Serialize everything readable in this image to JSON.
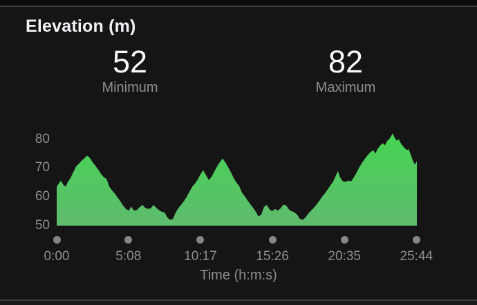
{
  "screen": {
    "background": "#0b0b0b",
    "panel_background": "#151515",
    "divider_color": "#3a3a3a",
    "text_primary": "#f2f2f7",
    "text_secondary": "#8e8e93",
    "tick_dot_color": "#85858a"
  },
  "header": {
    "title": "Elevation (m)"
  },
  "stats": {
    "minimum": {
      "value": "52",
      "label": "Minimum"
    },
    "maximum": {
      "value": "82",
      "label": "Maximum"
    }
  },
  "chart_data": {
    "type": "area",
    "title": "Elevation (m)",
    "xlabel": "Time (h:m:s)",
    "ylabel": "Elevation (m)",
    "legend": "none",
    "grid": false,
    "min": 52,
    "max": 82,
    "ylim": [
      50,
      82.8
    ],
    "duration_s": 1546,
    "y_ticks": [
      80,
      70,
      60,
      50
    ],
    "x_ticks": [
      {
        "t": 0,
        "label": "0:00"
      },
      {
        "t": 308,
        "label": "5:08"
      },
      {
        "t": 617,
        "label": "10:17"
      },
      {
        "t": 926,
        "label": "15:26"
      },
      {
        "t": 1235,
        "label": "20:35"
      },
      {
        "t": 1544,
        "label": "25:44"
      }
    ],
    "gradient_top": "#45d452",
    "gradient_bottom": "#5fbb6e",
    "points": [
      [
        0,
        63.5
      ],
      [
        9,
        64.6
      ],
      [
        18,
        65.6
      ],
      [
        30,
        64.0
      ],
      [
        39,
        63.6
      ],
      [
        47,
        65.0
      ],
      [
        59,
        66.5
      ],
      [
        71,
        68.5
      ],
      [
        83,
        70.5
      ],
      [
        95,
        71.5
      ],
      [
        107,
        72.5
      ],
      [
        119,
        73.4
      ],
      [
        131,
        74.3
      ],
      [
        142,
        73.5
      ],
      [
        154,
        72.0
      ],
      [
        166,
        70.8
      ],
      [
        178,
        69.5
      ],
      [
        190,
        68.0
      ],
      [
        202,
        66.8
      ],
      [
        214,
        66.2
      ],
      [
        226,
        63.5
      ],
      [
        237,
        62.3
      ],
      [
        249,
        61.2
      ],
      [
        261,
        59.8
      ],
      [
        273,
        58.5
      ],
      [
        285,
        57.0
      ],
      [
        297,
        55.8
      ],
      [
        309,
        55.2
      ],
      [
        320,
        56.6
      ],
      [
        332,
        55.2
      ],
      [
        344,
        55.4
      ],
      [
        356,
        56.4
      ],
      [
        368,
        57.2
      ],
      [
        380,
        56.2
      ],
      [
        392,
        55.8
      ],
      [
        404,
        56.0
      ],
      [
        415,
        57.2
      ],
      [
        427,
        56.2
      ],
      [
        439,
        55.4
      ],
      [
        451,
        54.8
      ],
      [
        463,
        54.6
      ],
      [
        475,
        52.8
      ],
      [
        487,
        52.0
      ],
      [
        499,
        52.3
      ],
      [
        510,
        54.5
      ],
      [
        522,
        56.0
      ],
      [
        534,
        57.2
      ],
      [
        546,
        58.5
      ],
      [
        558,
        60.0
      ],
      [
        570,
        61.8
      ],
      [
        582,
        63.5
      ],
      [
        593,
        64.5
      ],
      [
        605,
        66.0
      ],
      [
        617,
        67.8
      ],
      [
        629,
        69.2
      ],
      [
        641,
        67.5
      ],
      [
        653,
        65.8
      ],
      [
        665,
        67.0
      ],
      [
        677,
        68.8
      ],
      [
        688,
        70.5
      ],
      [
        700,
        72.0
      ],
      [
        712,
        73.3
      ],
      [
        724,
        72.0
      ],
      [
        736,
        70.3
      ],
      [
        748,
        68.5
      ],
      [
        760,
        66.5
      ],
      [
        771,
        65.0
      ],
      [
        783,
        63.8
      ],
      [
        795,
        61.5
      ],
      [
        807,
        60.2
      ],
      [
        819,
        58.8
      ],
      [
        831,
        57.5
      ],
      [
        843,
        56.2
      ],
      [
        855,
        54.8
      ],
      [
        866,
        53.2
      ],
      [
        878,
        53.8
      ],
      [
        890,
        56.5
      ],
      [
        902,
        57.2
      ],
      [
        914,
        55.6
      ],
      [
        925,
        55.0
      ],
      [
        937,
        55.8
      ],
      [
        949,
        55.2
      ],
      [
        961,
        56.0
      ],
      [
        973,
        57.3
      ],
      [
        985,
        57.0
      ],
      [
        997,
        55.6
      ],
      [
        1009,
        55.0
      ],
      [
        1021,
        54.6
      ],
      [
        1032,
        53.8
      ],
      [
        1044,
        52.3
      ],
      [
        1056,
        52.0
      ],
      [
        1068,
        52.8
      ],
      [
        1080,
        54.2
      ],
      [
        1092,
        55.2
      ],
      [
        1104,
        56.2
      ],
      [
        1115,
        57.3
      ],
      [
        1127,
        58.6
      ],
      [
        1139,
        60.0
      ],
      [
        1151,
        61.2
      ],
      [
        1163,
        62.5
      ],
      [
        1175,
        64.0
      ],
      [
        1187,
        65.3
      ],
      [
        1199,
        67.5
      ],
      [
        1207,
        69.0
      ],
      [
        1216,
        66.8
      ],
      [
        1228,
        65.4
      ],
      [
        1240,
        65.2
      ],
      [
        1252,
        65.6
      ],
      [
        1264,
        65.4
      ],
      [
        1276,
        66.8
      ],
      [
        1288,
        68.5
      ],
      [
        1299,
        70.3
      ],
      [
        1311,
        71.8
      ],
      [
        1323,
        73.2
      ],
      [
        1335,
        74.5
      ],
      [
        1347,
        75.5
      ],
      [
        1359,
        76.2
      ],
      [
        1368,
        75.0
      ],
      [
        1377,
        76.5
      ],
      [
        1388,
        77.8
      ],
      [
        1400,
        78.6
      ],
      [
        1409,
        77.9
      ],
      [
        1418,
        79.3
      ],
      [
        1430,
        80.3
      ],
      [
        1442,
        82.0
      ],
      [
        1451,
        80.4
      ],
      [
        1460,
        79.5
      ],
      [
        1469,
        79.9
      ],
      [
        1477,
        78.6
      ],
      [
        1486,
        77.6
      ],
      [
        1495,
        76.8
      ],
      [
        1504,
        76.2
      ],
      [
        1510,
        76.6
      ],
      [
        1519,
        74.8
      ],
      [
        1528,
        72.8
      ],
      [
        1537,
        71.2
      ],
      [
        1546,
        72.3
      ]
    ]
  }
}
